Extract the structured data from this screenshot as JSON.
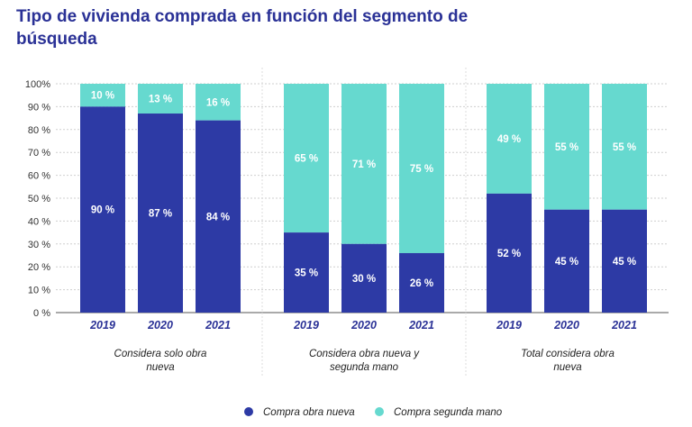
{
  "title": "Tipo de vivienda comprada en función del segmento de búsqueda",
  "chart_data": {
    "type": "bar",
    "stacked": true,
    "title": "Tipo de vivienda comprada en función del segmento de búsqueda",
    "ylim": [
      0,
      100
    ],
    "yticks": [
      "100%",
      "90 %",
      "80 %",
      "70 %",
      "60 %",
      "50 %",
      "40 %",
      "30 %",
      "20 %",
      "10 %",
      "0 %"
    ],
    "groups": [
      {
        "label": "Considera solo obra nueva",
        "label_lines": [
          "Considera solo obra",
          "nueva"
        ],
        "categories": [
          "2019",
          "2020",
          "2021"
        ]
      },
      {
        "label": "Considera obra nueva y segunda mano",
        "label_lines": [
          "Considera obra nueva y",
          "segunda mano"
        ],
        "categories": [
          "2019",
          "2020",
          "2021"
        ]
      },
      {
        "label": "Total considera obra nueva",
        "label_lines": [
          "Total considera obra",
          "nueva"
        ],
        "categories": [
          "2019",
          "2020",
          "2021"
        ]
      }
    ],
    "series": [
      {
        "name": "Compra obra nueva",
        "color": "#2d3aa5",
        "values": [
          90,
          87,
          84,
          35,
          30,
          26,
          52,
          45,
          45
        ],
        "labels": [
          "90 %",
          "87 %",
          "84 %",
          "35 %",
          "30 %",
          "26 %",
          "52 %",
          "45 %",
          "45 %"
        ]
      },
      {
        "name": "Compra segunda mano",
        "color": "#66d9cf",
        "values": [
          10,
          13,
          16,
          65,
          71,
          75,
          49,
          55,
          55
        ],
        "labels": [
          "10 %",
          "13 %",
          "16 %",
          "65 %",
          "71 %",
          "75 %",
          "49 %",
          "55 %",
          "55 %"
        ]
      }
    ],
    "grid": true,
    "legend": "bottom"
  }
}
